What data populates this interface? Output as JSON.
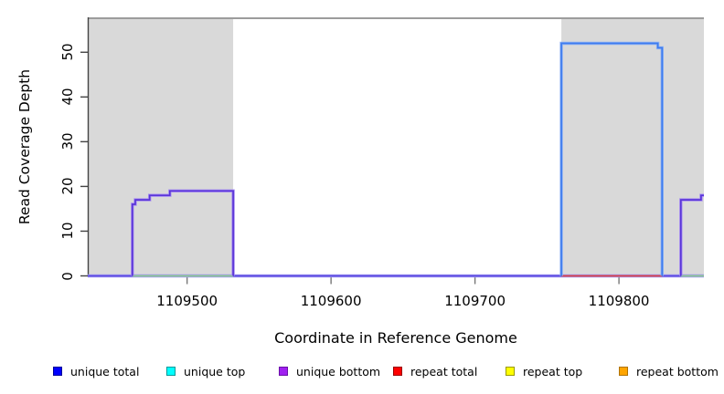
{
  "chart_data": {
    "type": "line",
    "title": "",
    "xlabel": "Coordinate in Reference Genome",
    "ylabel": "Read Coverage Depth",
    "xlim": [
      1109431,
      1109859
    ],
    "ylim": [
      0,
      57.6
    ],
    "x_ticks": [
      1109500,
      1109600,
      1109700,
      1109800
    ],
    "y_ticks": [
      0,
      10,
      20,
      30,
      40,
      50
    ],
    "grid": false,
    "legend_position": "bottom",
    "plot_background": "#ffffff",
    "shaded_region_fill": "#d9d9d9",
    "shaded_region_border": "#9c9c9c",
    "shaded_regions": [
      {
        "x0": 1109431,
        "x1": 1109532
      },
      {
        "x0": 1109760,
        "x1": 1109859
      }
    ],
    "series": [
      {
        "name": "unique total",
        "color": "#0000ff",
        "border": "#000099"
      },
      {
        "name": "unique top",
        "color": "#00ffff",
        "border": "#009999"
      },
      {
        "name": "unique bottom",
        "color": "#a020f0",
        "border": "#6a10a8"
      },
      {
        "name": "repeat total",
        "color": "#ff0000",
        "border": "#990000"
      },
      {
        "name": "repeat top",
        "color": "#ffff00",
        "border": "#999900"
      },
      {
        "name": "repeat bottom",
        "color": "#ffa500",
        "border": "#b07300"
      }
    ],
    "plot_lines": [
      {
        "name": "zero-baseline",
        "stroke": "#5a49e0",
        "halo": "#a49bf2",
        "points": [
          [
            1109431,
            0
          ],
          [
            1109859,
            0
          ]
        ]
      },
      {
        "name": "green-baseline-left",
        "stroke": "#8fcf8f",
        "halo": null,
        "points": [
          [
            1109462,
            0
          ],
          [
            1109532,
            0
          ]
        ]
      },
      {
        "name": "red-baseline",
        "stroke": "#dd4444",
        "halo": null,
        "points": [
          [
            1109760,
            0
          ],
          [
            1109830,
            0
          ]
        ]
      },
      {
        "name": "green-baseline-right",
        "stroke": "#8fcf8f",
        "halo": null,
        "points": [
          [
            1109843,
            0
          ],
          [
            1109859,
            0
          ]
        ]
      },
      {
        "name": "unique-bottom-left-block",
        "stroke": "#5a35d8",
        "halo": "#a78df2",
        "points": [
          [
            1109462,
            0
          ],
          [
            1109462,
            16
          ],
          [
            1109464,
            16
          ],
          [
            1109464,
            17
          ],
          [
            1109474,
            17
          ],
          [
            1109474,
            18
          ],
          [
            1109488,
            18
          ],
          [
            1109488,
            19
          ],
          [
            1109532,
            19
          ],
          [
            1109532,
            0
          ]
        ]
      },
      {
        "name": "unique-total-block",
        "stroke": "#3f7cee",
        "halo": "#8fb2f4",
        "points": [
          [
            1109760,
            0
          ],
          [
            1109760,
            52
          ],
          [
            1109827,
            52
          ],
          [
            1109827,
            51
          ],
          [
            1109830,
            51
          ],
          [
            1109830,
            0
          ]
        ]
      },
      {
        "name": "unique-bottom-right-block",
        "stroke": "#5a35d8",
        "halo": "#a78df2",
        "points": [
          [
            1109843,
            0
          ],
          [
            1109843,
            17
          ],
          [
            1109857,
            17
          ],
          [
            1109857,
            18
          ],
          [
            1109859,
            18
          ]
        ]
      }
    ]
  }
}
